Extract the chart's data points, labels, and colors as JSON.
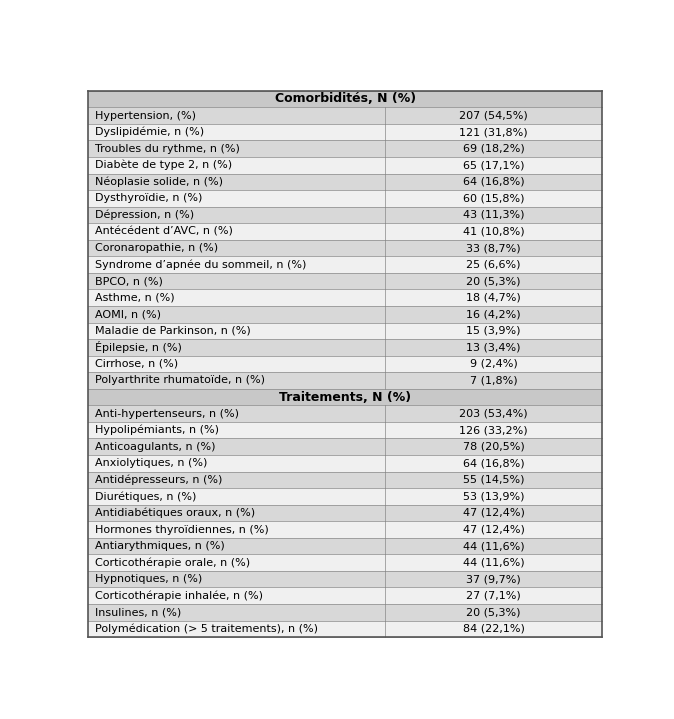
{
  "title1": "Comorbidités, N (%)",
  "title2": "Traitements, N (%)",
  "comorbidites": [
    [
      "Hypertension, (%)",
      "207 (54,5%)"
    ],
    [
      "Dyslipidémie, n (%)",
      "121 (31,8%)"
    ],
    [
      "Troubles du rythme, n (%)",
      "69 (18,2%)"
    ],
    [
      "Diabète de type 2, n (%)",
      "65 (17,1%)"
    ],
    [
      "Néoplasie solide, n (%)",
      "64 (16,8%)"
    ],
    [
      "Dysthyroïdie, n (%)",
      "60 (15,8%)"
    ],
    [
      "Dépression, n (%)",
      "43 (11,3%)"
    ],
    [
      "Antécédent d’AVC, n (%)",
      "41 (10,8%)"
    ],
    [
      "Coronaropathie, n (%)",
      "33 (8,7%)"
    ],
    [
      "Syndrome d’apnée du sommeil, n (%)",
      "25 (6,6%)"
    ],
    [
      "BPCO, n (%)",
      "20 (5,3%)"
    ],
    [
      "Asthme, n (%)",
      "18 (4,7%)"
    ],
    [
      "AOMI, n (%)",
      "16 (4,2%)"
    ],
    [
      "Maladie de Parkinson, n (%)",
      "15 (3,9%)"
    ],
    [
      "Épilepsie, n (%)",
      "13 (3,4%)"
    ],
    [
      "Cirrhose, n (%)",
      "9 (2,4%)"
    ],
    [
      "Polyarthrite rhumatoïde, n (%)",
      "7 (1,8%)"
    ]
  ],
  "traitements": [
    [
      "Anti-hypertenseurs, n (%)",
      "203 (53,4%)"
    ],
    [
      "Hypolipémiants, n (%)",
      "126 (33,2%)"
    ],
    [
      "Anticoagulants, n (%)",
      "78 (20,5%)"
    ],
    [
      "Anxiolytiques, n (%)",
      "64 (16,8%)"
    ],
    [
      "Antidépresseurs, n (%)",
      "55 (14,5%)"
    ],
    [
      "Diurétiques, n (%)",
      "53 (13,9%)"
    ],
    [
      "Antidiabétiques oraux, n (%)",
      "47 (12,4%)"
    ],
    [
      "Hormones thyroïdiennes, n (%)",
      "47 (12,4%)"
    ],
    [
      "Antiarythmiques, n (%)",
      "44 (11,6%)"
    ],
    [
      "Corticothérapie orale, n (%)",
      "44 (11,6%)"
    ],
    [
      "Hypnotiques, n (%)",
      "37 (9,7%)"
    ],
    [
      "Corticothérapie inhalée, n (%)",
      "27 (7,1%)"
    ],
    [
      "Insulines, n (%)",
      "20 (5,3%)"
    ]
  ],
  "footer": [
    "Polymédication (> 5 traitements), n (%)",
    "84 (22,1%)"
  ],
  "color_header": "#c8c8c8",
  "color_odd": "#d8d8d8",
  "color_even": "#f0f0f0",
  "color_footer_bg": "#f0f0f0",
  "border_color": "#888888",
  "outer_border_color": "#555555",
  "text_color": "#000000",
  "header_text_color": "#000000",
  "font_size": 8.0,
  "header_font_size": 9.0,
  "col_split": 0.575,
  "fig_width": 6.74,
  "fig_height": 7.19,
  "dpi": 100
}
